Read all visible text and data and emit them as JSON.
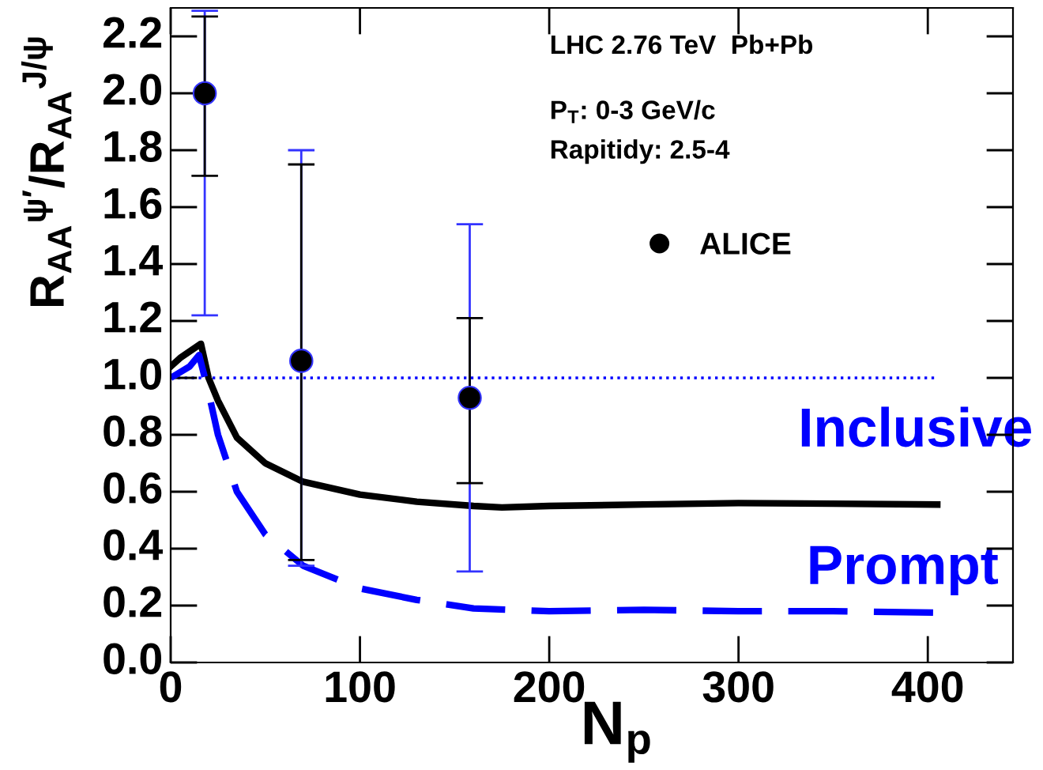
{
  "chart_data": {
    "type": "line",
    "xlabel": "N$_{p}$",
    "ylabel": "R$_{AA}$$^{ψ′}$/R$_{AA}$$^{J/ψ}$",
    "xlim": [
      0,
      445
    ],
    "ylim": [
      0,
      2.3
    ],
    "xticks": [
      0,
      100,
      200,
      300,
      400
    ],
    "yticks": [
      {
        "value": 0,
        "label": "0.0"
      },
      0.2,
      0.4,
      0.6,
      0.8,
      {
        "value": 1,
        "label": "1.0"
      },
      1.2,
      1.4,
      1.6,
      1.8,
      {
        "value": 2,
        "label": "2.0"
      },
      2.2
    ],
    "grid": false,
    "legend": "top right",
    "series": [
      {
        "color": "#000000",
        "line_style": "solid",
        "x": [
          0,
          5,
          16,
          20,
          25,
          35,
          50,
          70,
          100,
          130,
          160,
          175,
          200,
          250,
          300,
          350,
          405
        ],
        "values": [
          1.04,
          1.07,
          1.12,
          1.0,
          0.92,
          0.79,
          0.7,
          0.635,
          0.59,
          0.565,
          0.55,
          0.545,
          0.55,
          0.555,
          0.56,
          0.558,
          0.555
        ]
      },
      {
        "color": "#0000ff",
        "line_style": "dashed",
        "x": [
          0,
          10,
          15,
          20,
          25,
          35,
          50,
          70,
          100,
          130,
          160,
          200,
          250,
          300,
          350,
          405
        ],
        "values": [
          1.0,
          1.04,
          1.08,
          0.95,
          0.8,
          0.6,
          0.45,
          0.34,
          0.26,
          0.22,
          0.19,
          0.18,
          0.185,
          0.18,
          0.18,
          0.175
        ]
      },
      {
        "type": "scatter",
        "color": "#3333ff",
        "marker": "circle",
        "x": [
          18,
          69,
          158
        ],
        "values": [
          2.0,
          1.06,
          0.93
        ],
        "errors": [
          [
            1.22,
            2.29
          ],
          [
            0.34,
            1.8
          ],
          [
            0.32,
            1.54
          ]
        ]
      },
      {
        "type": "scatter",
        "name": "ALICE",
        "color": "#000000",
        "marker": "circle",
        "x": [
          18,
          69,
          158
        ],
        "values": [
          2.0,
          1.06,
          0.93
        ],
        "errors": [
          [
            1.71,
            2.27
          ],
          [
            0.36,
            1.75
          ],
          [
            0.63,
            1.21
          ]
        ]
      }
    ],
    "ref_lines": [
      {
        "axis": "y",
        "value": 1.0,
        "color": "#0000ff",
        "line_style": "dotted"
      }
    ],
    "annotations": [
      "LHC 2.76 TeV  Pb+Pb",
      "P$_{T}$: 0-3 GeV/c",
      "Rapitidy: 2.5-4",
      "Inclusive",
      "Prompt"
    ]
  }
}
